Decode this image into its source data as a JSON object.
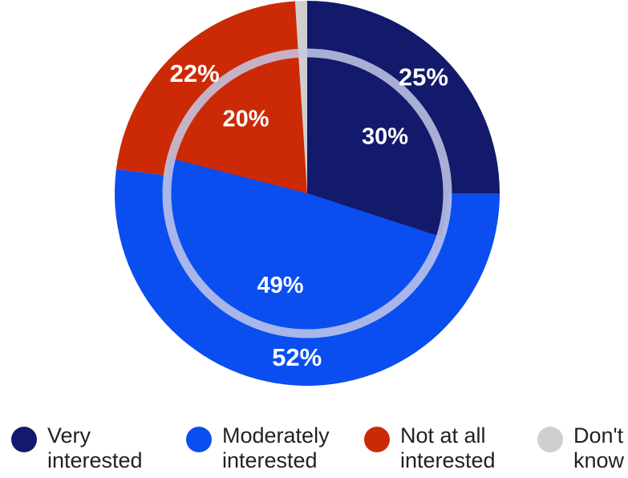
{
  "chart_data": {
    "type": "pie",
    "variant": "two-ring pie (outer ring and inner pie)",
    "categories": [
      "Very interested",
      "Moderately interested",
      "Not at all interested",
      "Don't know"
    ],
    "colors": [
      "#131a6b",
      "#0a4ef0",
      "#cc2a06",
      "#cfcfcf"
    ],
    "inner_ring_color": "#c4c9e8",
    "series": [
      {
        "ring": "outer",
        "values": [
          25,
          52,
          22,
          1
        ],
        "labels": [
          "25%",
          "52%",
          "22%",
          ""
        ]
      },
      {
        "ring": "inner",
        "values": [
          30,
          49,
          20,
          1
        ],
        "labels": [
          "30%",
          "49%",
          "20%",
          ""
        ]
      }
    ],
    "legend_position": "bottom",
    "title": "",
    "xlabel": "",
    "ylabel": ""
  },
  "legend": [
    {
      "line1": "Very",
      "line2": "interested",
      "color": "#131a6b"
    },
    {
      "line1": "Moderately",
      "line2": "interested",
      "color": "#0a4ef0"
    },
    {
      "line1": "Not at all",
      "line2": "interested",
      "color": "#cc2a06"
    },
    {
      "line1": "Don't",
      "line2": "know",
      "color": "#cfcfcf"
    }
  ]
}
